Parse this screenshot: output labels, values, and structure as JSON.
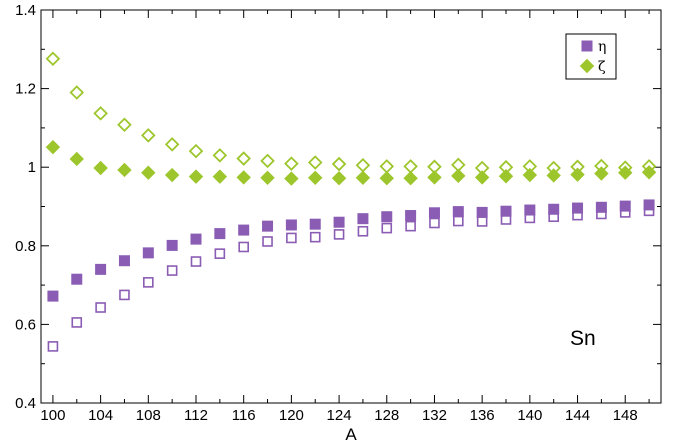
{
  "chart_data": {
    "type": "scatter",
    "title": "",
    "xlabel": "A",
    "ylabel": "",
    "xlim": [
      99,
      151
    ],
    "ylim": [
      0.4,
      1.4
    ],
    "x_ticks": [
      100,
      104,
      108,
      112,
      116,
      120,
      124,
      128,
      132,
      136,
      140,
      144,
      148
    ],
    "x_tick_labels": [
      "100",
      "104",
      "108",
      "112",
      "116",
      "120",
      "124",
      "128",
      "132",
      "136",
      "140",
      "144",
      "148"
    ],
    "y_ticks": [
      0.4,
      0.6,
      0.8,
      1.0,
      1.2,
      1.4
    ],
    "y_tick_labels": [
      "0.4",
      "0.6",
      "0.8",
      "1",
      "1.2",
      "1.4"
    ],
    "grid": false,
    "legend_position": "top-right",
    "annotation": "Sn",
    "x": [
      100,
      102,
      104,
      106,
      108,
      110,
      112,
      114,
      116,
      118,
      120,
      122,
      124,
      126,
      128,
      130,
      132,
      134,
      136,
      138,
      140,
      142,
      144,
      146,
      148,
      150
    ],
    "series": [
      {
        "name": "η",
        "marker": "square",
        "color": "#8a5cb3",
        "filled_values": [
          0.672,
          0.715,
          0.74,
          0.762,
          0.782,
          0.801,
          0.817,
          0.831,
          0.84,
          0.85,
          0.853,
          0.855,
          0.86,
          0.869,
          0.874,
          0.877,
          0.884,
          0.887,
          0.885,
          0.888,
          0.891,
          0.893,
          0.896,
          0.898,
          0.901,
          0.904
        ],
        "open_values": [
          0.544,
          0.605,
          0.643,
          0.675,
          0.707,
          0.737,
          0.76,
          0.78,
          0.797,
          0.811,
          0.82,
          0.822,
          0.829,
          0.837,
          0.845,
          0.85,
          0.858,
          0.863,
          0.862,
          0.867,
          0.871,
          0.874,
          0.878,
          0.881,
          0.885,
          0.889
        ]
      },
      {
        "name": "ζ",
        "marker": "diamond",
        "color": "#9dc62d",
        "filled_values": [
          1.051,
          1.021,
          0.998,
          0.993,
          0.986,
          0.98,
          0.976,
          0.976,
          0.974,
          0.973,
          0.971,
          0.973,
          0.972,
          0.973,
          0.972,
          0.972,
          0.974,
          0.978,
          0.974,
          0.977,
          0.98,
          0.979,
          0.981,
          0.984,
          0.986,
          0.987
        ],
        "open_values": [
          1.276,
          1.19,
          1.137,
          1.108,
          1.081,
          1.058,
          1.041,
          1.03,
          1.022,
          1.016,
          1.009,
          1.012,
          1.008,
          1.005,
          1.002,
          1.002,
          1.001,
          1.006,
          0.998,
          1.0,
          1.002,
          0.998,
          1.001,
          1.003,
          0.999,
          1.002
        ]
      }
    ]
  }
}
